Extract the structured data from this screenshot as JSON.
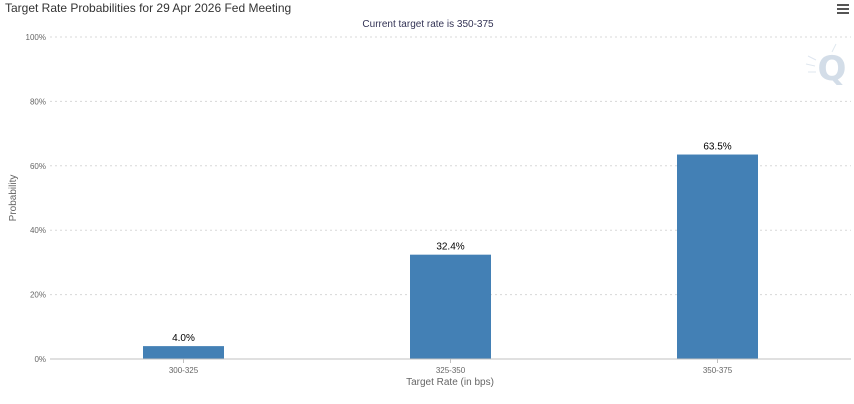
{
  "title": "Target Rate Probabilities for 29 Apr 2026 Fed Meeting",
  "subtitle": "Current target rate is 350-375",
  "menu_icon": "hamburger-menu-icon",
  "watermark_icon": "q-logo-icon",
  "colors": {
    "bar": "#4380b5",
    "grid": "#d8d8d8",
    "axis": "#c0c0c0",
    "text": "#333333",
    "subtitle": "#333355",
    "watermark": "#d3dde8"
  },
  "chart_data": {
    "type": "bar",
    "title": "Target Rate Probabilities for 29 Apr 2026 Fed Meeting",
    "subtitle": "Current target rate is 350-375",
    "categories": [
      "300-325",
      "325-350",
      "350-375"
    ],
    "values": [
      4.0,
      32.4,
      63.5
    ],
    "data_labels": [
      "4.0%",
      "32.4%",
      "63.5%"
    ],
    "xlabel": "Target Rate (in bps)",
    "ylabel": "Probability",
    "ylim": [
      0,
      100
    ],
    "yticks": [
      0,
      20,
      40,
      60,
      80,
      100
    ],
    "ytick_labels": [
      "0%",
      "20%",
      "40%",
      "60%",
      "80%",
      "100%"
    ],
    "grid": true,
    "legend": "none"
  }
}
